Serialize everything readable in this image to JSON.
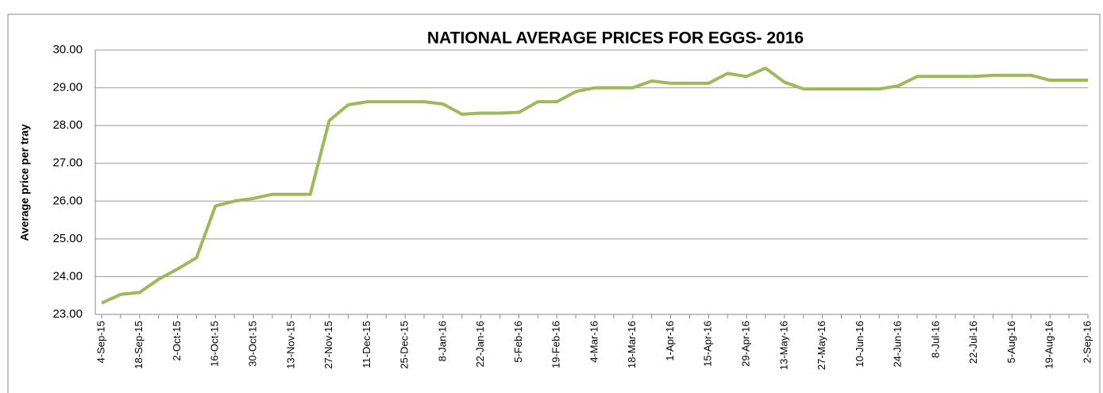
{
  "chart_data": {
    "type": "line",
    "title": "NATIONAL AVERAGE PRICES FOR EGGS- 2016",
    "y_label": "Average price per tray",
    "categories": [
      "4-Sep-15",
      null,
      "18-Sep-15",
      null,
      "2-Oct-15",
      null,
      "16-Oct-15",
      null,
      "30-Oct-15",
      null,
      "13-Nov-15",
      null,
      "27-Nov-15",
      null,
      "11-Dec-15",
      null,
      "25-Dec-15",
      null,
      "8-Jan-16",
      null,
      "22-Jan-16",
      null,
      "5-Feb-16",
      null,
      "19-Feb-16",
      null,
      "4-Mar-16",
      null,
      "18-Mar-16",
      null,
      "1-Apr-16",
      null,
      "15-Apr-16",
      null,
      "29-Apr-16",
      null,
      "13-May-16",
      null,
      "27-May-16",
      null,
      "10-Jun-16",
      null,
      "24-Jun-16",
      null,
      "8-Jul-16",
      null,
      "22-Jul-16",
      null,
      "5-Aug-16",
      null,
      "19-Aug-16",
      null,
      "2-Sep-16"
    ],
    "series": [
      {
        "name": "Average price",
        "color": "#9bbb59",
        "values": [
          23.3,
          23.53,
          23.58,
          23.93,
          24.2,
          24.5,
          25.87,
          26.0,
          26.07,
          26.18,
          26.18,
          26.18,
          28.13,
          28.55,
          28.63,
          28.63,
          28.63,
          28.63,
          28.57,
          28.3,
          28.33,
          28.33,
          28.35,
          28.63,
          28.63,
          28.9,
          29.0,
          29.0,
          29.0,
          29.18,
          29.12,
          29.12,
          29.12,
          29.38,
          29.3,
          29.52,
          29.15,
          28.97,
          28.97,
          28.97,
          28.97,
          28.97,
          29.05,
          29.3,
          29.3,
          29.3,
          29.3,
          29.33,
          29.33,
          29.33,
          29.2,
          29.2,
          29.2
        ]
      }
    ],
    "ylim": [
      23,
      30
    ],
    "yticks": [
      {
        "value": 23,
        "label": "23.00"
      },
      {
        "value": 24,
        "label": "24.00"
      },
      {
        "value": 25,
        "label": "25.00"
      },
      {
        "value": 26,
        "label": "26.00"
      },
      {
        "value": 27,
        "label": "27.00"
      },
      {
        "value": 28,
        "label": "28.00"
      },
      {
        "value": 29,
        "label": "29.00"
      },
      {
        "value": 30,
        "label": "30.00"
      }
    ],
    "grid": true
  }
}
